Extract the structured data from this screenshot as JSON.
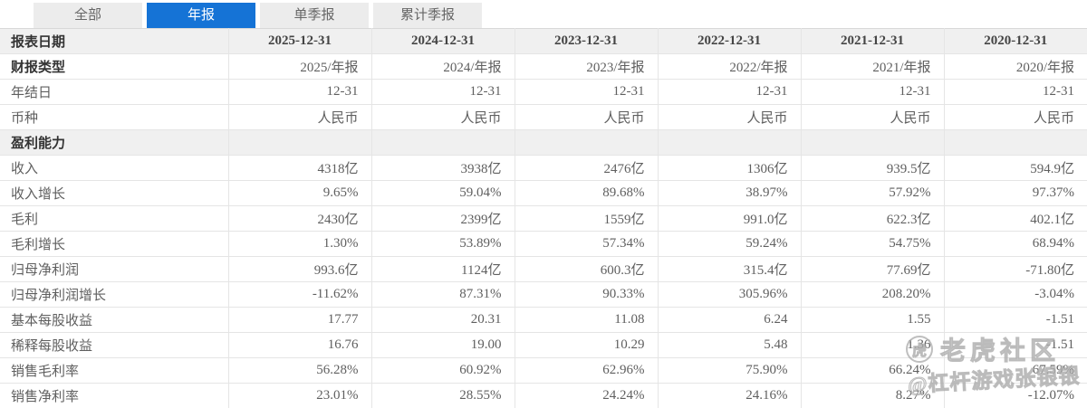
{
  "tabs": [
    {
      "label": "全部",
      "active": false
    },
    {
      "label": "年报",
      "active": true
    },
    {
      "label": "单季报",
      "active": false
    },
    {
      "label": "累计季报",
      "active": false
    }
  ],
  "table": {
    "header_label": "报表日期",
    "columns": [
      "2025-12-31",
      "2024-12-31",
      "2023-12-31",
      "2022-12-31",
      "2021-12-31",
      "2020-12-31"
    ],
    "rows": [
      {
        "label": "财报类型",
        "bold": true,
        "type": "data",
        "values": [
          "2025/年报",
          "2024/年报",
          "2023/年报",
          "2022/年报",
          "2021/年报",
          "2020/年报"
        ]
      },
      {
        "label": "年结日",
        "bold": false,
        "type": "data",
        "values": [
          "12-31",
          "12-31",
          "12-31",
          "12-31",
          "12-31",
          "12-31"
        ]
      },
      {
        "label": "币种",
        "bold": false,
        "type": "data",
        "values": [
          "人民币",
          "人民币",
          "人民币",
          "人民币",
          "人民币",
          "人民币"
        ]
      },
      {
        "label": "盈利能力",
        "bold": true,
        "type": "section",
        "values": [
          "",
          "",
          "",
          "",
          "",
          ""
        ]
      },
      {
        "label": "收入",
        "bold": false,
        "type": "data",
        "values": [
          "4318亿",
          "3938亿",
          "2476亿",
          "1306亿",
          "939.5亿",
          "594.9亿"
        ]
      },
      {
        "label": "收入增长",
        "bold": false,
        "type": "data",
        "values": [
          "9.65%",
          "59.04%",
          "89.68%",
          "38.97%",
          "57.92%",
          "97.37%"
        ]
      },
      {
        "label": "毛利",
        "bold": false,
        "type": "data",
        "values": [
          "2430亿",
          "2399亿",
          "1559亿",
          "991.0亿",
          "622.3亿",
          "402.1亿"
        ]
      },
      {
        "label": "毛利增长",
        "bold": false,
        "type": "data",
        "values": [
          "1.30%",
          "53.89%",
          "57.34%",
          "59.24%",
          "54.75%",
          "68.94%"
        ]
      },
      {
        "label": "归母净利润",
        "bold": false,
        "type": "data",
        "values": [
          "993.6亿",
          "1124亿",
          "600.3亿",
          "315.4亿",
          "77.69亿",
          "-71.80亿"
        ]
      },
      {
        "label": "归母净利润增长",
        "bold": false,
        "type": "data",
        "values": [
          "-11.62%",
          "87.31%",
          "90.33%",
          "305.96%",
          "208.20%",
          "-3.04%"
        ]
      },
      {
        "label": "基本每股收益",
        "bold": false,
        "type": "data",
        "values": [
          "17.77",
          "20.31",
          "11.08",
          "6.24",
          "1.55",
          "-1.51"
        ]
      },
      {
        "label": "稀释每股收益",
        "bold": false,
        "type": "data",
        "values": [
          "16.76",
          "19.00",
          "10.29",
          "5.48",
          "1.36",
          "-1.51"
        ]
      },
      {
        "label": "销售毛利率",
        "bold": false,
        "type": "data",
        "values": [
          "56.28%",
          "60.92%",
          "62.96%",
          "75.90%",
          "66.24%",
          "67.59%"
        ]
      },
      {
        "label": "销售净利率",
        "bold": false,
        "type": "data",
        "values": [
          "23.01%",
          "28.55%",
          "24.24%",
          "24.16%",
          "8.27%",
          "-12.07%"
        ]
      }
    ]
  },
  "watermark": {
    "logo_icon": "tiger-logo",
    "logo_glyph": "虎",
    "community": "老虎社区",
    "author": "@杠杆游戏张银银"
  },
  "colors": {
    "accent_blue": "#1573d6",
    "tab_gray": "#ececec",
    "row_gray": "#f0f0f0",
    "border": "#e5e5e5",
    "text_dark": "#333333",
    "text_gray": "#5f5f5f"
  }
}
